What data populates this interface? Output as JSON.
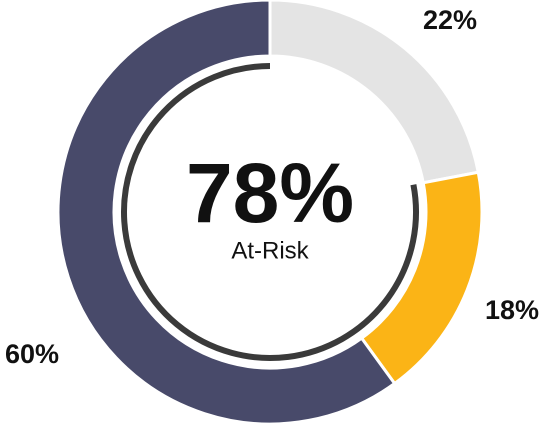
{
  "chart_data": {
    "type": "donut",
    "categories": [
      null,
      null,
      null
    ],
    "values": [
      22,
      18,
      60
    ],
    "value_labels": [
      "22%",
      "18%",
      "60%"
    ],
    "colors": [
      "#e4e4e4",
      "#fbb416",
      "#484a6a"
    ],
    "center_label": {
      "value": 78,
      "label": "78%"
    },
    "center_text": "At-Risk",
    "center_arc_color": "#3a3a3a"
  }
}
